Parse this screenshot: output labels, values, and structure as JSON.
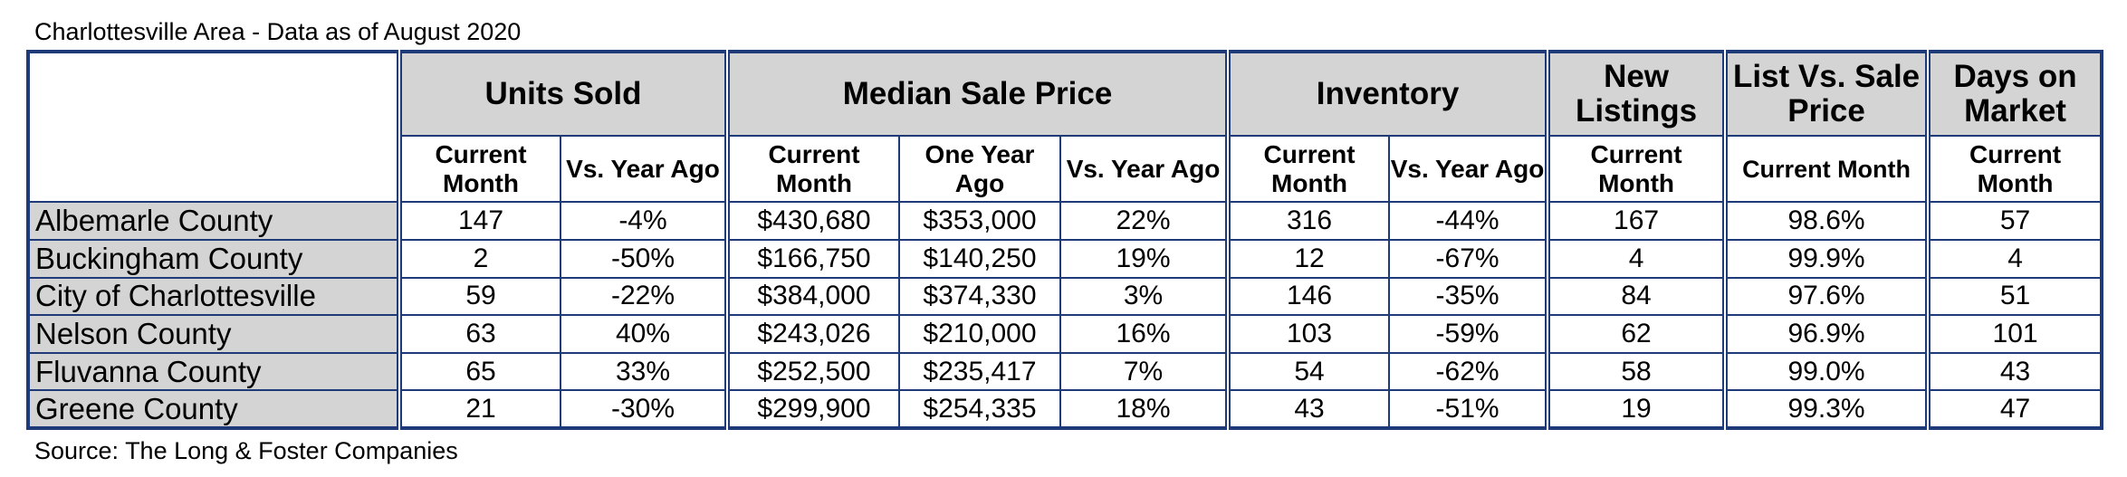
{
  "title": "Charlottesville Area - Data as of August 2020",
  "source": "Source: The Long & Foster Companies",
  "groups": {
    "units_sold": "Units Sold",
    "median_sale_price": "Median Sale Price",
    "inventory": "Inventory",
    "new_listings": "New Listings",
    "list_vs_sale": "List Vs. Sale Price",
    "days_on_market": "Days on Market"
  },
  "subheaders": {
    "units_current": "Current Month",
    "units_vs_year": "Vs. Year Ago",
    "price_current": "Current Month",
    "price_one_year": "One Year Ago",
    "price_vs_year": "Vs. Year Ago",
    "inv_current": "Current Month",
    "inv_vs_year": "Vs. Year Ago",
    "new_current": "Current Month",
    "list_current": "Current Month",
    "days_current": "Current Month"
  },
  "rows": [
    {
      "area": "Albemarle County",
      "units_current": "147",
      "units_vs_year": "-4%",
      "price_current": "$430,680",
      "price_one_year": "$353,000",
      "price_vs_year": "22%",
      "inv_current": "316",
      "inv_vs_year": "-44%",
      "new_current": "167",
      "list_current": "98.6%",
      "days_current": "57"
    },
    {
      "area": "Buckingham County",
      "units_current": "2",
      "units_vs_year": "-50%",
      "price_current": "$166,750",
      "price_one_year": "$140,250",
      "price_vs_year": "19%",
      "inv_current": "12",
      "inv_vs_year": "-67%",
      "new_current": "4",
      "list_current": "99.9%",
      "days_current": "4"
    },
    {
      "area": "City of Charlottesville",
      "units_current": "59",
      "units_vs_year": "-22%",
      "price_current": "$384,000",
      "price_one_year": "$374,330",
      "price_vs_year": "3%",
      "inv_current": "146",
      "inv_vs_year": "-35%",
      "new_current": "84",
      "list_current": "97.6%",
      "days_current": "51"
    },
    {
      "area": "Nelson County",
      "units_current": "63",
      "units_vs_year": "40%",
      "price_current": "$243,026",
      "price_one_year": "$210,000",
      "price_vs_year": "16%",
      "inv_current": "103",
      "inv_vs_year": "-59%",
      "new_current": "62",
      "list_current": "96.9%",
      "days_current": "101"
    },
    {
      "area": "Fluvanna County",
      "units_current": "65",
      "units_vs_year": "33%",
      "price_current": "$252,500",
      "price_one_year": "$235,417",
      "price_vs_year": "7%",
      "inv_current": "54",
      "inv_vs_year": "-62%",
      "new_current": "58",
      "list_current": "99.0%",
      "days_current": "43"
    },
    {
      "area": "Greene County",
      "units_current": "21",
      "units_vs_year": "-30%",
      "price_current": "$299,900",
      "price_one_year": "$254,335",
      "price_vs_year": "18%",
      "inv_current": "43",
      "inv_vs_year": "-51%",
      "new_current": "19",
      "list_current": "99.3%",
      "days_current": "47"
    }
  ]
}
